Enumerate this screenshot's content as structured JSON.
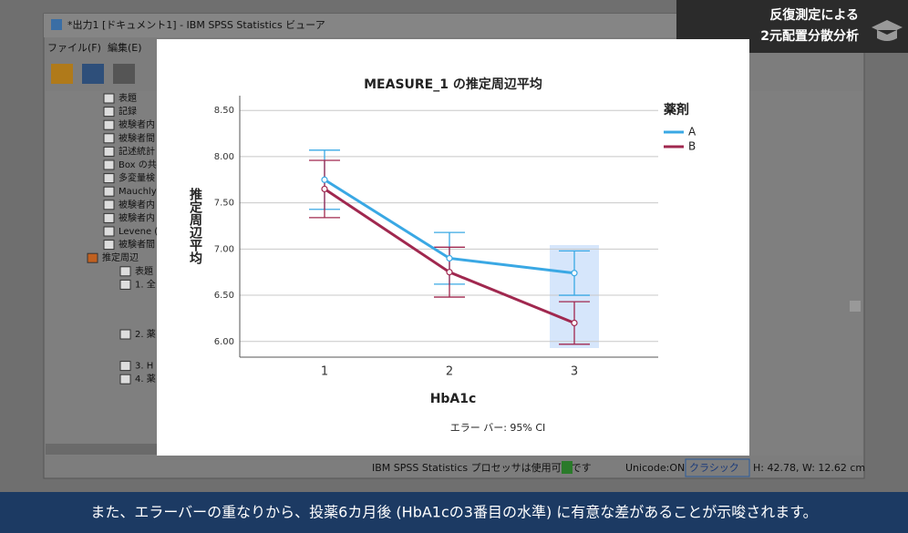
{
  "window": {
    "title": "*出力1 [ドキュメント1] - IBM SPSS Statistics ビューア",
    "menu": [
      "ファイル(F)",
      "編集(E)"
    ],
    "tree": [
      "表題",
      "記録",
      "被験者内",
      "被験者間",
      "記述統計",
      "Box の共",
      "多変量検",
      "Mauchly",
      "被験者内",
      "被験者内",
      "Levene (",
      "被験者間",
      "推定周辺",
      "表題",
      "1. 全",
      "2. 薬",
      "3. H",
      "4. 薬"
    ],
    "status": "IBM SPSS Statistics プロセッサは使用可能です",
    "unicode": "Unicode:ON",
    "mode": "クラシック",
    "size": "H: 42.78, W: 12.62 cm"
  },
  "badge": [
    "反復測定による",
    "2元配置分散分析"
  ],
  "caption": "また、エラーバーの重なりから、投薬6カ月後 (HbA1cの3番目の水準) に有意な差があることが示唆されます。",
  "chart_data": {
    "type": "line",
    "title": "MEASURE_1 の推定周辺平均",
    "x_label": "HbA1c",
    "y_label": "推定周辺平均",
    "categories": [
      "1",
      "2",
      "3"
    ],
    "legend_title": "薬剤",
    "legend_position": "right",
    "series": [
      {
        "name": "A",
        "color": "#3aa8e4",
        "values": [
          7.75,
          6.9,
          6.74
        ],
        "errors": [
          0.32,
          0.28,
          0.24
        ]
      },
      {
        "name": "B",
        "color": "#a0284f",
        "values": [
          7.65,
          6.75,
          6.2
        ],
        "errors": [
          0.31,
          0.27,
          0.23
        ]
      }
    ],
    "ylim": [
      5.83,
      8.66
    ],
    "yticks": [
      {
        "value": 6,
        "label": "6.00"
      },
      {
        "value": 6.5,
        "label": "6.50"
      },
      {
        "value": 7,
        "label": "7.00"
      },
      {
        "value": 7.5,
        "label": "7.50"
      },
      {
        "value": 8,
        "label": "8.00"
      },
      {
        "value": 8.5,
        "label": "8.50"
      }
    ],
    "grid": true,
    "note": "エラー バー: 95% CI"
  }
}
